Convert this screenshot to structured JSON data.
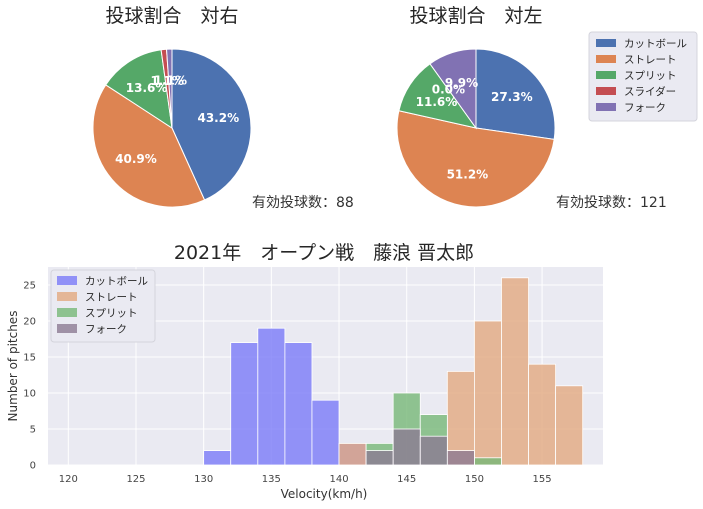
{
  "colors": {
    "cut": "#4c72b0",
    "straight": "#dd8452",
    "split": "#55a868",
    "slider": "#c44e52",
    "fork": "#8172b3",
    "hist_cut": "#7b7bf7",
    "hist_straight": "#e2a97f",
    "hist_split": "#77b877",
    "hist_fork": "#8c7a92",
    "axes_bg": "#eaeaf2"
  },
  "chart_data": [
    {
      "type": "pie",
      "title": "投球割合　対右",
      "labels": [
        "カットボール",
        "ストレート",
        "スプリット",
        "スライダー",
        "フォーク"
      ],
      "values": [
        43.2,
        40.9,
        13.6,
        1.1,
        1.1
      ],
      "pct_labels": [
        "43.2%",
        "40.9%",
        "13.6%",
        "1.1%",
        "1.1%"
      ],
      "count_label": "有効投球数：88",
      "start_angle_deg": 90,
      "direction": "clockwise"
    },
    {
      "type": "pie",
      "title": "投球割合　対左",
      "labels": [
        "カットボール",
        "ストレート",
        "スプリット",
        "スライダー",
        "フォーク"
      ],
      "values": [
        27.3,
        51.2,
        11.6,
        0.0,
        9.9
      ],
      "pct_labels": [
        "27.3%",
        "51.2%",
        "11.6%",
        "0.0%",
        "9.9%"
      ],
      "count_label": "有効投球数：121",
      "start_angle_deg": 90,
      "direction": "clockwise",
      "legend": {
        "entries": [
          "カットボール",
          "ストレート",
          "スプリット",
          "スライダー",
          "フォーク"
        ],
        "placement": "upper-right-outside"
      }
    },
    {
      "type": "bar",
      "subtype": "histogram",
      "title": "2021年　オープン戦　藤浪 晋太郎",
      "xlabel": "Velocity(km/h)",
      "ylabel": "Number of pitches",
      "xlim": [
        118.5,
        159.5
      ],
      "ylim": [
        0,
        27.5
      ],
      "xticks": [
        120,
        125,
        130,
        135,
        140,
        145,
        150,
        155
      ],
      "yticks": [
        0,
        5,
        10,
        15,
        20,
        25
      ],
      "grid": true,
      "legend": {
        "entries": [
          "カットボール",
          "ストレート",
          "スプリット",
          "フォーク"
        ],
        "placement": "upper-left"
      },
      "series": [
        {
          "name": "カットボール",
          "bins": [
            [
              130,
              132,
              2
            ],
            [
              132,
              134,
              17
            ],
            [
              134,
              136,
              19
            ],
            [
              136,
              138,
              17
            ],
            [
              138,
              140,
              9
            ],
            [
              140,
              142,
              3
            ]
          ]
        },
        {
          "name": "ストレート",
          "bins": [
            [
              140,
              142,
              3
            ],
            [
              148,
              150,
              13
            ],
            [
              150,
              152,
              20
            ],
            [
              152,
              154,
              26
            ],
            [
              154,
              156,
              14
            ],
            [
              156,
              158,
              11
            ]
          ]
        },
        {
          "name": "スプリット",
          "bins": [
            [
              142,
              144,
              3
            ],
            [
              144,
              146,
              10
            ],
            [
              146,
              148,
              7
            ],
            [
              150,
              152,
              1
            ]
          ]
        },
        {
          "name": "フォーク",
          "bins": [
            [
              142,
              144,
              2
            ],
            [
              144,
              146,
              5
            ],
            [
              146,
              148,
              4
            ],
            [
              148,
              150,
              2
            ]
          ]
        }
      ]
    }
  ]
}
